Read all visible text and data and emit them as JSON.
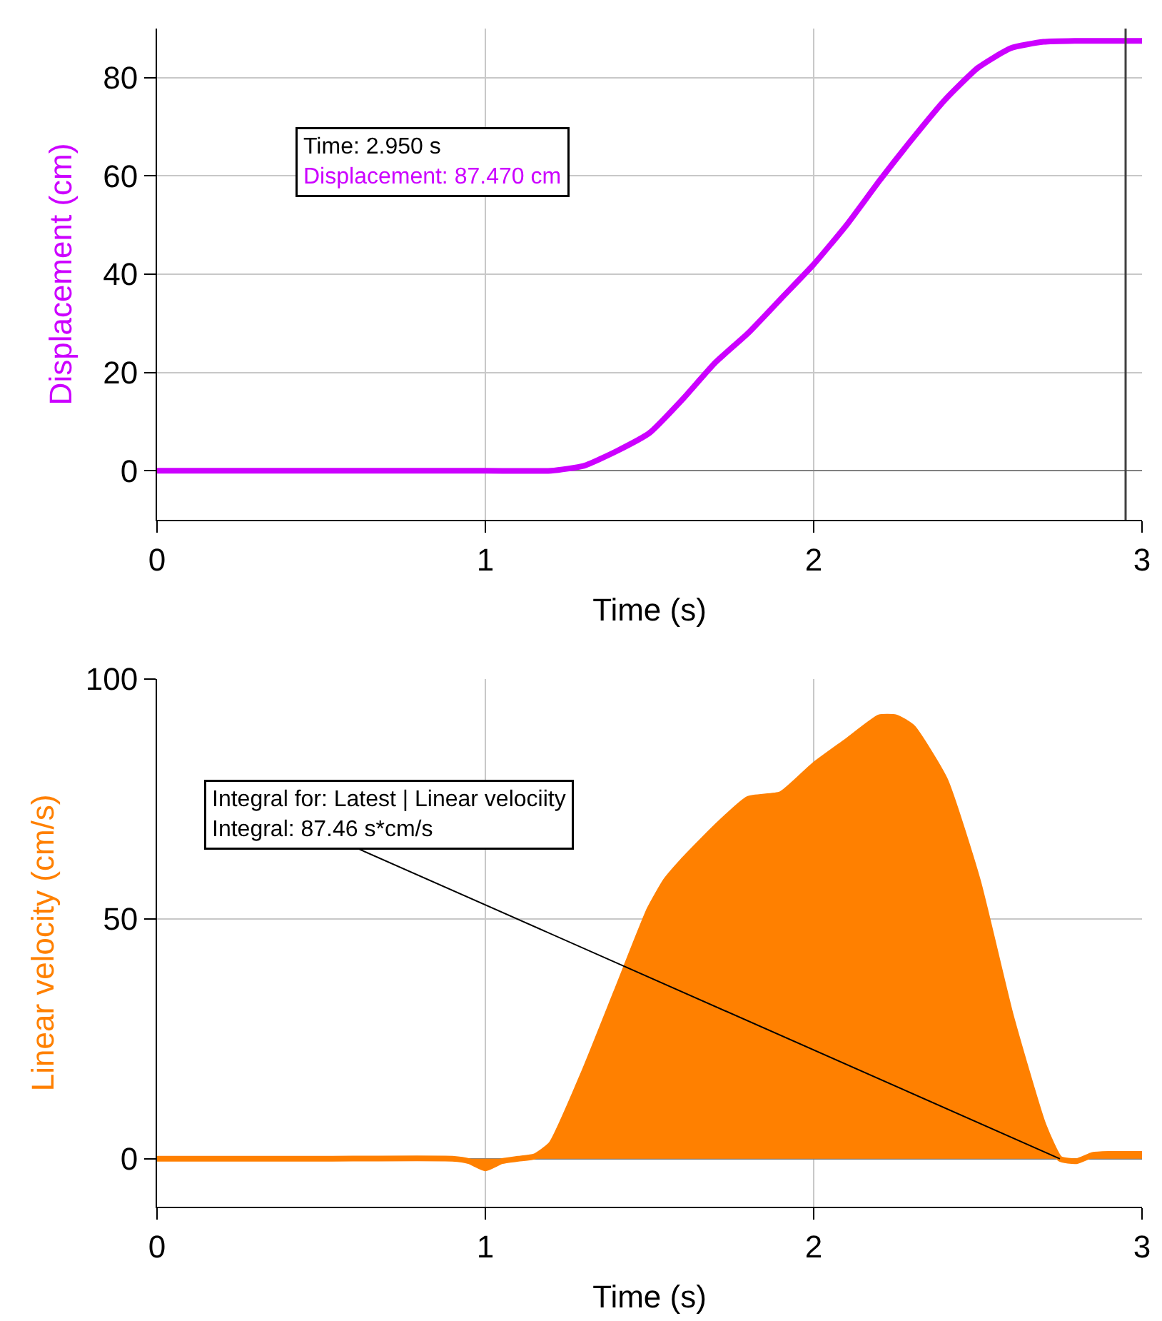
{
  "chart_data": [
    {
      "type": "line",
      "xlabel": "Time (s)",
      "ylabel": "Displacement (cm)",
      "xlim": [
        0,
        3
      ],
      "ylim": [
        -10,
        90
      ],
      "xticks": [
        0,
        1,
        2,
        3
      ],
      "yticks": [
        0,
        20,
        40,
        60,
        80
      ],
      "grid": true,
      "x": [
        0,
        0.5,
        1.0,
        1.2,
        1.3,
        1.4,
        1.5,
        1.6,
        1.7,
        1.8,
        1.9,
        2.0,
        2.1,
        2.2,
        2.3,
        2.4,
        2.5,
        2.6,
        2.7,
        2.8,
        3.0
      ],
      "series": [
        {
          "color": "#cc00ff",
          "values": [
            0,
            0,
            0,
            0,
            1,
            4,
            7.7,
            14.5,
            22,
            28,
            35,
            42,
            50,
            59,
            67.5,
            75.5,
            82,
            86,
            87.3,
            87.5,
            87.5
          ]
        }
      ],
      "ref_lines": [
        {
          "axis": "x",
          "value": 2.95,
          "color": "#404040"
        }
      ],
      "annotations": [
        "Time: 2.950 s\nDisplacement: 87.470 cm"
      ]
    },
    {
      "type": "area",
      "xlabel": "Time (s)",
      "ylabel": "Linear velocity (cm/s)",
      "xlim": [
        0,
        3
      ],
      "ylim": [
        -10,
        100
      ],
      "xticks": [
        0,
        1,
        2,
        3
      ],
      "yticks": [
        0,
        50,
        100
      ],
      "grid": true,
      "x": [
        0,
        0.5,
        0.9,
        0.95,
        1.0,
        1.05,
        1.1,
        1.15,
        1.2,
        1.3,
        1.4,
        1.5,
        1.55,
        1.6,
        1.7,
        1.8,
        1.9,
        2.0,
        2.1,
        2.2,
        2.25,
        2.3,
        2.4,
        2.5,
        2.6,
        2.7,
        2.75,
        2.8,
        2.85,
        2.9,
        3.0
      ],
      "series": [
        {
          "color": "#ff8000",
          "values": [
            0,
            0,
            0,
            -0.5,
            -2,
            -0.5,
            0,
            0.5,
            3,
            18,
            35,
            52,
            58,
            62,
            69,
            75,
            76,
            82,
            87,
            92,
            92,
            90,
            79,
            58,
            30,
            7,
            0,
            -0.5,
            0.8,
            1,
            1
          ]
        }
      ],
      "annotations": [
        {
          "text": "Integral for: Latest | Linear velociity\nIntegral: 87.46 s*cm/s",
          "x": 2.75,
          "y": 0
        }
      ]
    }
  ]
}
